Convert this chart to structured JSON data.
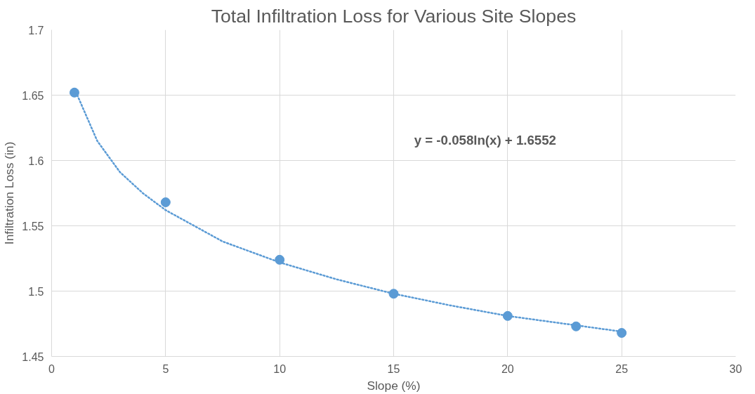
{
  "chart_data": {
    "type": "scatter",
    "title": "Total Infiltration Loss for Various Site Slopes",
    "xlabel": "Slope (%)",
    "ylabel": "Infiltration Loss (in)",
    "annotations": [
      "y = -0.058ln(x) + 1.6552"
    ],
    "xlim": [
      0,
      30
    ],
    "xticks": [
      0,
      5,
      10,
      15,
      20,
      25,
      30
    ],
    "ylim": [
      1.45,
      1.7
    ],
    "yticks": [
      1.45,
      1.5,
      1.55,
      1.6,
      1.65,
      1.7
    ],
    "grid": true,
    "marker": "circle",
    "series": [
      {
        "color": "#5b9bd5",
        "x": [
          1,
          5,
          10,
          15,
          20,
          23,
          25
        ],
        "values": [
          1.652,
          1.568,
          1.524,
          1.498,
          1.481,
          1.473,
          1.468
        ]
      },
      {
        "type": "line",
        "color": "#5b9bd5",
        "line_style": "dotted",
        "marker": "none",
        "x": [
          1,
          2,
          3,
          4,
          5,
          7.5,
          10,
          12.5,
          15,
          17.5,
          20,
          22.5,
          25
        ],
        "values": [
          1.655,
          1.615,
          1.591,
          1.575,
          1.562,
          1.538,
          1.522,
          1.509,
          1.498,
          1.489,
          1.481,
          1.475,
          1.469
        ]
      }
    ]
  }
}
